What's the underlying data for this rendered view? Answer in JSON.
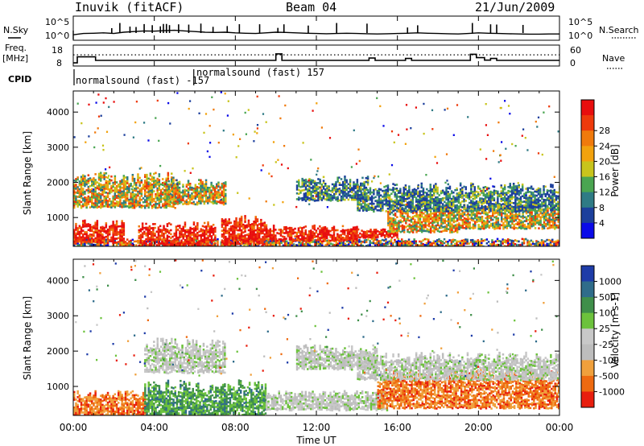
{
  "header": {
    "station": "Inuvik (fitACF)",
    "beam": "Beam 04",
    "date": "21/Jun/2009"
  },
  "chart_data": [
    {
      "type": "line",
      "panel": "N.Sky / N.Search",
      "left_label": "N.Sky",
      "right_label": "N.Search",
      "left_ticks": [
        "10^5",
        "10^0"
      ],
      "right_ticks": [
        "10^5",
        "10^0"
      ],
      "x": [
        0,
        0.5,
        1,
        1.5,
        2,
        2.5,
        3,
        3.5,
        4,
        4.5,
        5,
        5.5,
        6,
        6.5,
        7,
        7.5,
        8,
        8.5,
        9,
        9.5,
        10,
        10.5,
        11,
        11.5,
        12,
        12.5,
        13,
        13.5,
        14,
        14.5,
        15,
        15.5,
        16,
        16.5,
        17,
        17.5,
        18,
        18.5,
        19,
        19.5,
        20,
        20.5,
        21,
        21.5,
        22,
        22.5,
        23,
        23.5,
        24
      ],
      "series": [
        {
          "values": [
            0.3,
            0.4,
            0.42,
            0.45,
            0.4,
            0.5,
            0.55,
            0.6,
            0.58,
            0.62,
            0.65,
            0.6,
            0.55,
            0.5,
            0.48,
            0.5,
            0.45,
            0.42,
            0.4,
            0.45,
            0.5,
            0.48,
            0.45,
            0.42,
            0.4,
            0.38,
            0.4,
            0.42,
            0.4,
            0.38,
            0.36,
            0.38,
            0.4,
            0.42,
            0.45,
            0.42,
            0.4,
            0.38,
            0.36,
            0.4,
            0.45,
            0.42,
            0.4,
            0.38,
            0.36,
            0.35,
            0.35,
            0.36,
            0.36
          ]
        }
      ],
      "spikes_x": [
        1.9,
        2.3,
        2.8,
        3.1,
        3.5,
        3.9,
        4.3,
        4.45,
        4.6,
        4.75,
        5.2,
        5.7,
        6.3,
        6.9,
        7.6,
        8.2,
        9.2,
        10.1,
        10.4,
        11.6,
        13.0,
        14.5,
        16.5,
        17.0,
        19.7,
        20.6,
        20.9,
        22.2
      ],
      "ylim": [
        0,
        1
      ]
    },
    {
      "type": "line",
      "panel": "Freq. / Nave",
      "left_label": "Freq.",
      "left_unit": "[MHz]",
      "right_label": "Nave",
      "left_ticks": [
        "18",
        "8"
      ],
      "right_ticks": [
        "60",
        "0"
      ],
      "x": [
        0,
        0.2,
        0.2,
        1.1,
        1.1,
        10.0,
        10.0,
        10.3,
        10.3,
        14.6,
        14.6,
        14.9,
        14.9,
        16.4,
        16.4,
        16.7,
        16.7,
        19.6,
        19.6,
        19.9,
        19.9,
        20.3,
        20.3,
        20.6,
        20.6,
        20.9,
        20.9,
        24
      ],
      "series": [
        {
          "name": "Freq.",
          "values": [
            9.5,
            9.5,
            12.4,
            12.4,
            10.7,
            10.7,
            13.8,
            13.8,
            10.7,
            10.7,
            11.8,
            11.8,
            10.7,
            10.7,
            11.6,
            11.6,
            10.7,
            10.7,
            13.6,
            13.6,
            12.0,
            12.0,
            10.8,
            10.8,
            11.6,
            11.6,
            10.7,
            10.7
          ]
        }
      ],
      "nave_level": 32,
      "ylim": [
        8,
        18
      ]
    },
    {
      "type": "table",
      "panel": "CPID",
      "label": "CPID",
      "entries": [
        {
          "start": 0,
          "text": "normalsound (fast) -157"
        },
        {
          "start": 5.95,
          "text": "normalsound (fast) 157"
        }
      ]
    },
    {
      "type": "heatmap",
      "panel": "Power",
      "ylabel": "Slant Range [km]",
      "yticks": [
        1000,
        2000,
        3000,
        4000
      ],
      "ylim": [
        180,
        4600
      ],
      "xlim": [
        0,
        24
      ],
      "colorbar_label": "Power [dB]",
      "colorbar_ticks": [
        4,
        8,
        12,
        16,
        20,
        24,
        28
      ],
      "colorbar_colors": [
        "#0a0ae8",
        "#1c3f9c",
        "#2f7b85",
        "#4aa551",
        "#c8c41c",
        "#f2a20e",
        "#f07a0c",
        "#ee3a0c",
        "#e80e0e"
      ],
      "bands": [
        {
          "t0": 0,
          "t1": 24,
          "r0": 180,
          "r1": 420,
          "level": "mixed"
        },
        {
          "t0": 0,
          "t1": 2.5,
          "r0": 300,
          "r1": 950,
          "level": "high"
        },
        {
          "t0": 3.2,
          "t1": 7.0,
          "r0": 200,
          "r1": 900,
          "level": "high"
        },
        {
          "t0": 7.3,
          "t1": 9.5,
          "r0": 250,
          "r1": 1100,
          "level": "high"
        },
        {
          "t0": 9.5,
          "t1": 14.0,
          "r0": 350,
          "r1": 800,
          "level": "high"
        },
        {
          "t0": 13.5,
          "t1": 16.0,
          "r0": 450,
          "r1": 700,
          "level": "high"
        },
        {
          "t0": 15.5,
          "t1": 19.0,
          "r0": 600,
          "r1": 1500,
          "level": "mid"
        },
        {
          "t0": 19.0,
          "t1": 24,
          "r0": 700,
          "r1": 1400,
          "level": "mid"
        },
        {
          "t0": 0,
          "t1": 5.0,
          "r0": 1300,
          "r1": 2300,
          "level": "mid"
        },
        {
          "t0": 4.5,
          "t1": 7.5,
          "r0": 1400,
          "r1": 2100,
          "level": "mid"
        },
        {
          "t0": 11.0,
          "t1": 14.5,
          "r0": 1500,
          "r1": 2200,
          "level": "low"
        },
        {
          "t0": 14.0,
          "t1": 24,
          "r0": 1200,
          "r1": 2000,
          "level": "low"
        }
      ]
    },
    {
      "type": "heatmap",
      "panel": "Velocity",
      "ylabel": "Slant Range [km]",
      "yticks": [
        1000,
        2000,
        3000,
        4000
      ],
      "ylim": [
        180,
        4600
      ],
      "xlim": [
        0,
        24
      ],
      "colorbar_label": "Velocity [m s-1]",
      "colorbar_ticks": [
        "1000",
        "500",
        "100",
        "25",
        "-25",
        "-100",
        "-500",
        "-1000"
      ],
      "colorbar_colors": [
        "#1e3ca8",
        "#2f6c8a",
        "#3f8f4a",
        "#6cc23c",
        "#c8c8c8",
        "#bdbdbd",
        "#f0a03c",
        "#ee6a10",
        "#e81e0e"
      ],
      "bands": [
        {
          "t0": 0,
          "t1": 3.5,
          "r0": 200,
          "r1": 900,
          "level": "neg"
        },
        {
          "t0": 3.5,
          "t1": 9.5,
          "r0": 200,
          "r1": 1200,
          "level": "pos"
        },
        {
          "t0": 9.5,
          "t1": 15.5,
          "r0": 350,
          "r1": 900,
          "level": "zero"
        },
        {
          "t0": 15.0,
          "t1": 24,
          "r0": 400,
          "r1": 1500,
          "level": "neg"
        },
        {
          "t0": 3.5,
          "t1": 7.5,
          "r0": 1400,
          "r1": 2400,
          "level": "zero"
        },
        {
          "t0": 11.0,
          "t1": 15.0,
          "r0": 1500,
          "r1": 2200,
          "level": "zero"
        },
        {
          "t0": 14.0,
          "t1": 24,
          "r0": 1200,
          "r1": 2000,
          "level": "zero"
        }
      ]
    }
  ],
  "x_axis": {
    "tick_labels": [
      "00:00",
      "04:00",
      "08:00",
      "12:00",
      "16:00",
      "20:00",
      "00:00"
    ],
    "label": "Time UT"
  }
}
